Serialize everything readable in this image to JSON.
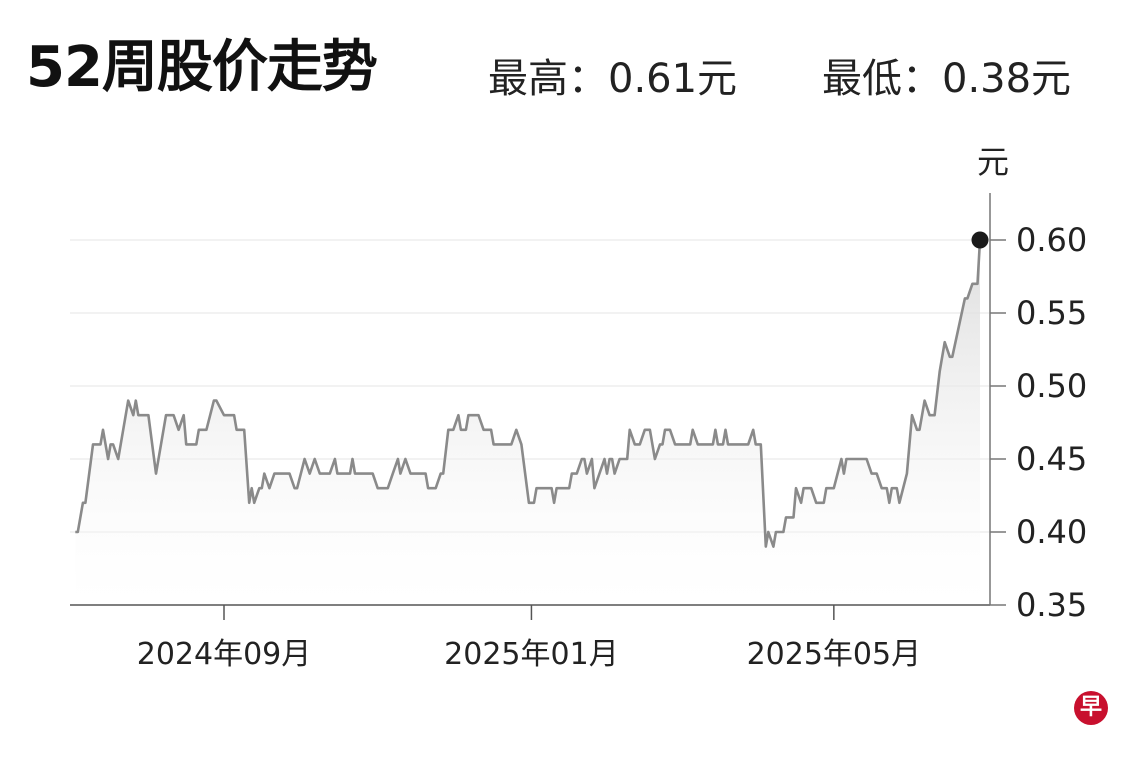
{
  "header": {
    "title": "52周股价走势",
    "high_label": "最高：0.61元",
    "low_label": "最低：0.38元"
  },
  "logo": {
    "text": "早",
    "color": "#c8102e"
  },
  "chart_data": {
    "type": "area",
    "title": "52周股价走势",
    "ylabel": "元",
    "ylim": [
      0.35,
      0.62
    ],
    "y_ticks": [
      "0.35",
      "0.40",
      "0.45",
      "0.50",
      "0.55",
      "0.60"
    ],
    "x_ticks": [
      {
        "date": "2024-09-01",
        "label": "2024年09月"
      },
      {
        "date": "2025-01-01",
        "label": "2025年01月"
      },
      {
        "date": "2025-05-01",
        "label": "2025年05月"
      }
    ],
    "grid": true,
    "line_color": "#8a8a8a",
    "marker_color": "#1a1a1a",
    "series": [
      {
        "points": [
          [
            "2024-07-04",
            0.4
          ],
          [
            "2024-07-05",
            0.4
          ],
          [
            "2024-07-07",
            0.42
          ],
          [
            "2024-07-08",
            0.42
          ],
          [
            "2024-07-11",
            0.46
          ],
          [
            "2024-07-14",
            0.46
          ],
          [
            "2024-07-15",
            0.47
          ],
          [
            "2024-07-17",
            0.45
          ],
          [
            "2024-07-18",
            0.46
          ],
          [
            "2024-07-19",
            0.46
          ],
          [
            "2024-07-21",
            0.45
          ],
          [
            "2024-07-23",
            0.47
          ],
          [
            "2024-07-25",
            0.49
          ],
          [
            "2024-07-27",
            0.48
          ],
          [
            "2024-07-28",
            0.49
          ],
          [
            "2024-07-29",
            0.48
          ],
          [
            "2024-08-02",
            0.48
          ],
          [
            "2024-08-05",
            0.44
          ],
          [
            "2024-08-09",
            0.48
          ],
          [
            "2024-08-12",
            0.48
          ],
          [
            "2024-08-14",
            0.47
          ],
          [
            "2024-08-16",
            0.48
          ],
          [
            "2024-08-17",
            0.46
          ],
          [
            "2024-08-21",
            0.46
          ],
          [
            "2024-08-22",
            0.47
          ],
          [
            "2024-08-25",
            0.47
          ],
          [
            "2024-08-28",
            0.49
          ],
          [
            "2024-08-29",
            0.49
          ],
          [
            "2024-09-01",
            0.48
          ],
          [
            "2024-09-05",
            0.48
          ],
          [
            "2024-09-06",
            0.47
          ],
          [
            "2024-09-09",
            0.47
          ],
          [
            "2024-09-11",
            0.42
          ],
          [
            "2024-09-12",
            0.43
          ],
          [
            "2024-09-13",
            0.42
          ],
          [
            "2024-09-15",
            0.43
          ],
          [
            "2024-09-16",
            0.43
          ],
          [
            "2024-09-17",
            0.44
          ],
          [
            "2024-09-19",
            0.43
          ],
          [
            "2024-09-21",
            0.44
          ],
          [
            "2024-09-27",
            0.44
          ],
          [
            "2024-09-29",
            0.43
          ],
          [
            "2024-09-30",
            0.43
          ],
          [
            "2024-10-03",
            0.45
          ],
          [
            "2024-10-05",
            0.44
          ],
          [
            "2024-10-07",
            0.45
          ],
          [
            "2024-10-09",
            0.44
          ],
          [
            "2024-10-13",
            0.44
          ],
          [
            "2024-10-15",
            0.45
          ],
          [
            "2024-10-16",
            0.44
          ],
          [
            "2024-10-21",
            0.44
          ],
          [
            "2024-10-22",
            0.45
          ],
          [
            "2024-10-23",
            0.44
          ],
          [
            "2024-10-30",
            0.44
          ],
          [
            "2024-11-01",
            0.43
          ],
          [
            "2024-11-05",
            0.43
          ],
          [
            "2024-11-07",
            0.44
          ],
          [
            "2024-11-09",
            0.45
          ],
          [
            "2024-11-10",
            0.44
          ],
          [
            "2024-11-12",
            0.45
          ],
          [
            "2024-11-14",
            0.44
          ],
          [
            "2024-11-20",
            0.44
          ],
          [
            "2024-11-21",
            0.43
          ],
          [
            "2024-11-24",
            0.43
          ],
          [
            "2024-11-26",
            0.44
          ],
          [
            "2024-11-27",
            0.44
          ],
          [
            "2024-11-29",
            0.47
          ],
          [
            "2024-12-01",
            0.47
          ],
          [
            "2024-12-03",
            0.48
          ],
          [
            "2024-12-04",
            0.47
          ],
          [
            "2024-12-06",
            0.47
          ],
          [
            "2024-12-07",
            0.48
          ],
          [
            "2024-12-11",
            0.48
          ],
          [
            "2024-12-13",
            0.47
          ],
          [
            "2024-12-16",
            0.47
          ],
          [
            "2024-12-17",
            0.46
          ],
          [
            "2024-12-24",
            0.46
          ],
          [
            "2024-12-26",
            0.47
          ],
          [
            "2024-12-28",
            0.46
          ],
          [
            "2024-12-31",
            0.42
          ],
          [
            "2025-01-02",
            0.42
          ],
          [
            "2025-01-03",
            0.43
          ],
          [
            "2025-01-09",
            0.43
          ],
          [
            "2025-01-10",
            0.42
          ],
          [
            "2025-01-11",
            0.43
          ],
          [
            "2025-01-16",
            0.43
          ],
          [
            "2025-01-17",
            0.44
          ],
          [
            "2025-01-19",
            0.44
          ],
          [
            "2025-01-21",
            0.45
          ],
          [
            "2025-01-22",
            0.45
          ],
          [
            "2025-01-23",
            0.44
          ],
          [
            "2025-01-25",
            0.45
          ],
          [
            "2025-01-26",
            0.43
          ],
          [
            "2025-01-30",
            0.45
          ],
          [
            "2025-01-31",
            0.44
          ],
          [
            "2025-02-01",
            0.45
          ],
          [
            "2025-02-02",
            0.45
          ],
          [
            "2025-02-03",
            0.44
          ],
          [
            "2025-02-05",
            0.45
          ],
          [
            "2025-02-08",
            0.45
          ],
          [
            "2025-02-09",
            0.47
          ],
          [
            "2025-02-11",
            0.46
          ],
          [
            "2025-02-13",
            0.46
          ],
          [
            "2025-02-15",
            0.47
          ],
          [
            "2025-02-17",
            0.47
          ],
          [
            "2025-02-19",
            0.45
          ],
          [
            "2025-02-21",
            0.46
          ],
          [
            "2025-02-22",
            0.46
          ],
          [
            "2025-02-23",
            0.47
          ],
          [
            "2025-02-25",
            0.47
          ],
          [
            "2025-02-27",
            0.46
          ],
          [
            "2025-03-05",
            0.46
          ],
          [
            "2025-03-06",
            0.47
          ],
          [
            "2025-03-08",
            0.46
          ],
          [
            "2025-03-14",
            0.46
          ],
          [
            "2025-03-15",
            0.47
          ],
          [
            "2025-03-16",
            0.46
          ],
          [
            "2025-03-18",
            0.46
          ],
          [
            "2025-03-19",
            0.47
          ],
          [
            "2025-03-20",
            0.46
          ],
          [
            "2025-03-28",
            0.46
          ],
          [
            "2025-03-30",
            0.47
          ],
          [
            "2025-03-31",
            0.46
          ],
          [
            "2025-04-02",
            0.46
          ],
          [
            "2025-04-04",
            0.39
          ],
          [
            "2025-04-05",
            0.4
          ],
          [
            "2025-04-07",
            0.39
          ],
          [
            "2025-04-08",
            0.4
          ],
          [
            "2025-04-11",
            0.4
          ],
          [
            "2025-04-12",
            0.41
          ],
          [
            "2025-04-15",
            0.41
          ],
          [
            "2025-04-16",
            0.43
          ],
          [
            "2025-04-18",
            0.42
          ],
          [
            "2025-04-19",
            0.43
          ],
          [
            "2025-04-22",
            0.43
          ],
          [
            "2025-04-24",
            0.42
          ],
          [
            "2025-04-27",
            0.42
          ],
          [
            "2025-04-28",
            0.43
          ],
          [
            "2025-05-01",
            0.43
          ],
          [
            "2025-05-04",
            0.45
          ],
          [
            "2025-05-05",
            0.44
          ],
          [
            "2025-05-06",
            0.45
          ],
          [
            "2025-05-14",
            0.45
          ],
          [
            "2025-05-16",
            0.44
          ],
          [
            "2025-05-18",
            0.44
          ],
          [
            "2025-05-20",
            0.43
          ],
          [
            "2025-05-22",
            0.43
          ],
          [
            "2025-05-23",
            0.42
          ],
          [
            "2025-05-24",
            0.43
          ],
          [
            "2025-05-26",
            0.43
          ],
          [
            "2025-05-27",
            0.42
          ],
          [
            "2025-05-30",
            0.44
          ],
          [
            "2025-06-01",
            0.48
          ],
          [
            "2025-06-03",
            0.47
          ],
          [
            "2025-06-04",
            0.47
          ],
          [
            "2025-06-06",
            0.49
          ],
          [
            "2025-06-08",
            0.48
          ],
          [
            "2025-06-10",
            0.48
          ],
          [
            "2025-06-12",
            0.51
          ],
          [
            "2025-06-14",
            0.53
          ],
          [
            "2025-06-16",
            0.52
          ],
          [
            "2025-06-17",
            0.52
          ],
          [
            "2025-06-22",
            0.56
          ],
          [
            "2025-06-23",
            0.56
          ],
          [
            "2025-06-25",
            0.57
          ],
          [
            "2025-06-27",
            0.57
          ],
          [
            "2025-06-28",
            0.6
          ]
        ]
      }
    ]
  }
}
